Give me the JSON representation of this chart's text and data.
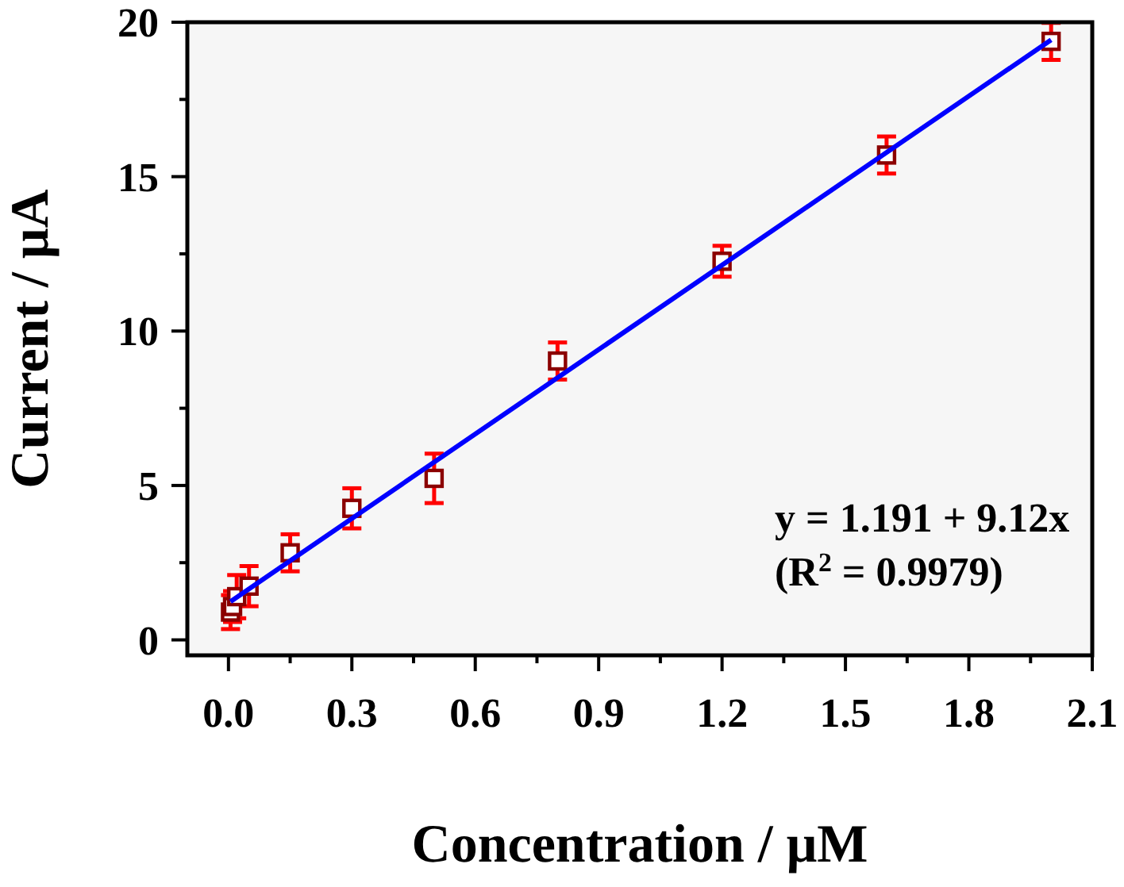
{
  "chart_data": {
    "type": "scatter",
    "xlabel": "Concentration / μM",
    "ylabel": "Current / μA",
    "xlim": [
      -0.1,
      2.1
    ],
    "ylim": [
      -0.5,
      20
    ],
    "xticks": [
      {
        "value": 0,
        "label": "0.0"
      },
      {
        "value": 0.15,
        "label": null
      },
      0.3,
      {
        "value": 0.45,
        "label": null
      },
      0.6,
      {
        "value": 0.75,
        "label": null
      },
      0.9,
      {
        "value": 1.05,
        "label": null
      },
      1.2,
      {
        "value": 1.35,
        "label": null
      },
      1.5,
      {
        "value": 1.65,
        "label": null
      },
      1.8,
      {
        "value": 1.95,
        "label": null
      },
      2.1
    ],
    "yticks": [
      0,
      {
        "value": 2.5,
        "label": null
      },
      5,
      {
        "value": 7.5,
        "label": null
      },
      10,
      {
        "value": 12.5,
        "label": null
      },
      15,
      {
        "value": 17.5,
        "label": null
      },
      20
    ],
    "grid": false,
    "series": [
      {
        "color": "#8b0000",
        "marker": "square",
        "x": [
          0.005,
          0.01,
          0.02,
          0.05,
          0.15,
          0.3,
          0.5,
          0.8,
          1.2,
          1.6,
          2.0
        ],
        "values": [
          0.9,
          1.08,
          1.4,
          1.74,
          2.82,
          4.26,
          5.23,
          9.03,
          12.26,
          15.7,
          19.38
        ],
        "errors": [
          0.55,
          0.5,
          0.7,
          0.65,
          0.6,
          0.65,
          0.8,
          0.6,
          0.5,
          0.6,
          0.6
        ]
      },
      {
        "type": "line",
        "color": "#0000ff",
        "marker": "none",
        "line_style": "solid",
        "x": [
          0.005,
          2.0
        ],
        "values": [
          1.24,
          19.43
        ]
      }
    ],
    "annotations": [
      "y = 1.191 + 9.12x",
      "(R$^{2}$ = 0.9979)"
    ]
  }
}
